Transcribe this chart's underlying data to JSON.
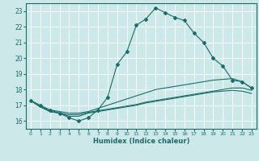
{
  "title": "",
  "xlabel": "Humidex (Indice chaleur)",
  "xlim": [
    -0.5,
    23.5
  ],
  "ylim": [
    15.5,
    23.5
  ],
  "yticks": [
    16,
    17,
    18,
    19,
    20,
    21,
    22,
    23
  ],
  "xticks": [
    0,
    1,
    2,
    3,
    4,
    5,
    6,
    7,
    8,
    9,
    10,
    11,
    12,
    13,
    14,
    15,
    16,
    17,
    18,
    19,
    20,
    21,
    22,
    23
  ],
  "bg_color": "#cde8e8",
  "grid_color": "#ffffff",
  "line_color": "#1a6b6b",
  "lines": [
    {
      "x": [
        0,
        1,
        2,
        3,
        4,
        5,
        6,
        7,
        8,
        9,
        10,
        11,
        12,
        13,
        14,
        15,
        16,
        17,
        18,
        19,
        20,
        21,
        22,
        23
      ],
      "y": [
        17.3,
        17.0,
        16.7,
        16.5,
        16.2,
        16.0,
        16.2,
        16.7,
        17.5,
        19.6,
        20.4,
        22.1,
        22.5,
        23.2,
        22.9,
        22.6,
        22.4,
        21.6,
        21.0,
        20.0,
        19.5,
        18.6,
        18.5,
        18.1
      ],
      "marker": true
    },
    {
      "x": [
        0,
        1,
        2,
        3,
        4,
        5,
        6,
        7,
        8,
        9,
        10,
        11,
        12,
        13,
        14,
        15,
        16,
        17,
        18,
        19,
        20,
        21,
        22,
        23
      ],
      "y": [
        17.3,
        16.9,
        16.7,
        16.6,
        16.5,
        16.5,
        16.6,
        16.8,
        17.0,
        17.2,
        17.4,
        17.6,
        17.8,
        18.0,
        18.1,
        18.2,
        18.3,
        18.4,
        18.5,
        18.6,
        18.65,
        18.7,
        18.5,
        18.1
      ],
      "marker": false
    },
    {
      "x": [
        0,
        1,
        2,
        3,
        4,
        5,
        6,
        7,
        8,
        9,
        10,
        11,
        12,
        13,
        14,
        15,
        16,
        17,
        18,
        19,
        20,
        21,
        22,
        23
      ],
      "y": [
        17.3,
        16.9,
        16.6,
        16.5,
        16.4,
        16.4,
        16.55,
        16.65,
        16.75,
        16.85,
        16.95,
        17.05,
        17.2,
        17.3,
        17.4,
        17.5,
        17.6,
        17.7,
        17.8,
        17.9,
        18.0,
        18.1,
        18.1,
        17.95
      ],
      "marker": false
    },
    {
      "x": [
        0,
        1,
        2,
        3,
        4,
        5,
        6,
        7,
        8,
        9,
        10,
        11,
        12,
        13,
        14,
        15,
        16,
        17,
        18,
        19,
        20,
        21,
        22,
        23
      ],
      "y": [
        17.3,
        16.9,
        16.6,
        16.5,
        16.3,
        16.3,
        16.5,
        16.6,
        16.7,
        16.8,
        16.9,
        17.0,
        17.15,
        17.25,
        17.35,
        17.45,
        17.55,
        17.65,
        17.75,
        17.85,
        17.9,
        17.95,
        17.9,
        17.75
      ],
      "marker": false
    }
  ]
}
